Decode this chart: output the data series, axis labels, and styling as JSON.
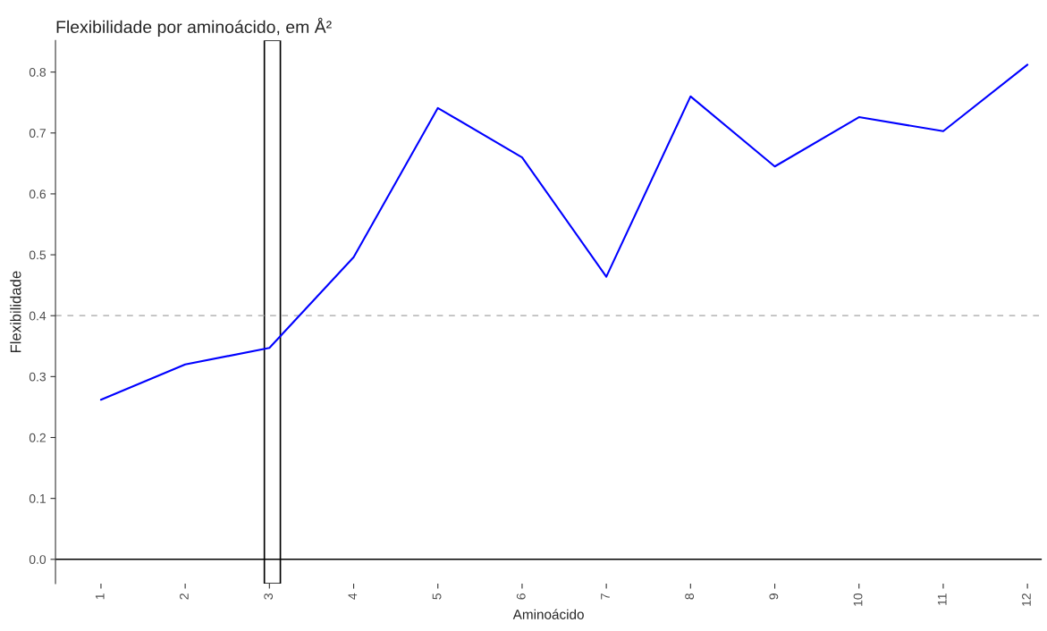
{
  "chart_data": {
    "type": "line",
    "title": "Flexibilidade por aminoácido, em Å²",
    "xlabel": "Aminoácido",
    "ylabel": "Flexibilidade",
    "x": [
      1,
      2,
      3,
      4,
      5,
      6,
      7,
      8,
      9,
      10,
      11,
      12
    ],
    "series": [
      {
        "color": "#0000ff",
        "values": [
          0.262,
          0.32,
          0.347,
          0.496,
          0.741,
          0.66,
          0.464,
          0.76,
          0.645,
          0.726,
          0.703,
          0.812
        ]
      }
    ],
    "xlim": [
      0.46,
      12.17
    ],
    "xticks": [
      1,
      2,
      3,
      4,
      5,
      6,
      7,
      8,
      9,
      10,
      11,
      12
    ],
    "ylim": [
      -0.04,
      0.852
    ],
    "yticks": [
      {
        "value": 0,
        "label": "0.0"
      },
      {
        "value": 0.1,
        "label": "0.1"
      },
      {
        "value": 0.2,
        "label": "0.2"
      },
      {
        "value": 0.3,
        "label": "0.3"
      },
      {
        "value": 0.4,
        "label": "0.4"
      },
      {
        "value": 0.5,
        "label": "0.5"
      },
      {
        "value": 0.6,
        "label": "0.6"
      },
      {
        "value": 0.7,
        "label": "0.7"
      },
      {
        "value": 0.8,
        "label": "0.8"
      }
    ],
    "ref_lines": [
      {
        "axis": "y",
        "value": 0.4,
        "color": "#bebebe",
        "line_style": "dashed"
      },
      {
        "axis": "y",
        "value": 0,
        "color": "#000000",
        "line_style": "solid"
      }
    ],
    "bands": [
      {
        "axis": "x",
        "from": 2.94,
        "to": 3.13,
        "color": "#000000"
      }
    ],
    "grid": false,
    "marker": "none",
    "line_style": "solid"
  }
}
